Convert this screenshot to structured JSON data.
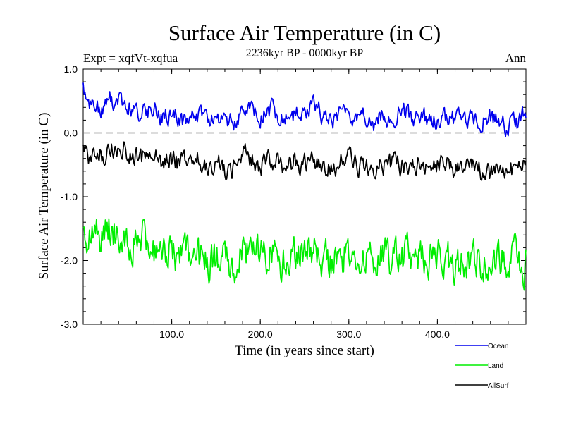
{
  "chart_data": {
    "type": "line",
    "title": "Surface Air Temperature (in C)",
    "subtitle": "2236kyr BP - 0000kyr BP",
    "experiment": "Expt = xqfVt-xqfua",
    "season": "Ann",
    "xlabel": "Time (in years since start)",
    "ylabel": "Surface Air Temperature (in C)",
    "xlim": [
      0,
      500
    ],
    "ylim": [
      -3.0,
      1.0
    ],
    "x_ticks": [
      "100.0",
      "200.0",
      "300.0",
      "400.0"
    ],
    "x_tick_values": [
      100,
      200,
      300,
      400
    ],
    "y_ticks": [
      "1.0",
      "0.0",
      "-1.0",
      "-2.0",
      "-3.0"
    ],
    "y_tick_values": [
      1,
      0,
      -1,
      -2,
      -3
    ],
    "reference_line": 0.0,
    "series": [
      {
        "name": "Ocean",
        "color": "#0000ee",
        "x": [
          0,
          10,
          20,
          30,
          40,
          50,
          60,
          70,
          80,
          90,
          100,
          110,
          120,
          130,
          140,
          150,
          160,
          170,
          180,
          190,
          200,
          210,
          220,
          230,
          240,
          250,
          260,
          270,
          280,
          290,
          300,
          310,
          320,
          330,
          340,
          350,
          360,
          370,
          380,
          390,
          400,
          410,
          420,
          430,
          440,
          450,
          460,
          470,
          480,
          490,
          500
        ],
        "values": [
          0.7,
          0.45,
          0.35,
          0.55,
          0.5,
          0.4,
          0.35,
          0.3,
          0.35,
          0.25,
          0.3,
          0.2,
          0.25,
          0.3,
          0.2,
          0.3,
          0.15,
          0.2,
          0.35,
          0.3,
          0.2,
          0.35,
          0.3,
          0.2,
          0.25,
          0.3,
          0.5,
          0.25,
          0.2,
          0.25,
          0.3,
          0.2,
          0.25,
          0.15,
          0.3,
          0.25,
          0.35,
          0.25,
          0.3,
          0.2,
          0.2,
          0.25,
          0.2,
          0.25,
          0.2,
          0.15,
          0.25,
          0.2,
          0.1,
          0.15,
          0.35
        ]
      },
      {
        "name": "Land",
        "color": "#00ee00",
        "x": [
          0,
          10,
          20,
          30,
          40,
          50,
          60,
          70,
          80,
          90,
          100,
          110,
          120,
          130,
          140,
          150,
          160,
          170,
          180,
          190,
          200,
          210,
          220,
          230,
          240,
          250,
          260,
          270,
          280,
          290,
          300,
          310,
          320,
          330,
          340,
          350,
          360,
          370,
          380,
          390,
          400,
          410,
          420,
          430,
          440,
          450,
          460,
          470,
          480,
          490,
          500
        ],
        "values": [
          -1.6,
          -1.55,
          -1.7,
          -1.5,
          -1.6,
          -1.7,
          -1.65,
          -1.6,
          -1.8,
          -1.9,
          -1.85,
          -1.95,
          -1.9,
          -2.0,
          -2.1,
          -2.0,
          -2.05,
          -2.15,
          -1.8,
          -1.9,
          -2.0,
          -1.9,
          -2.05,
          -1.95,
          -2.0,
          -1.9,
          -1.85,
          -2.0,
          -2.05,
          -1.95,
          -1.85,
          -1.9,
          -2.0,
          -1.95,
          -1.85,
          -2.0,
          -1.9,
          -2.0,
          -1.95,
          -1.9,
          -1.95,
          -2.0,
          -2.1,
          -2.0,
          -1.9,
          -2.05,
          -2.1,
          -2.05,
          -1.95,
          -2.0,
          -2.05
        ]
      },
      {
        "name": "AllSurf",
        "color": "#000000",
        "x": [
          0,
          10,
          20,
          30,
          40,
          50,
          60,
          70,
          80,
          90,
          100,
          110,
          120,
          130,
          140,
          150,
          160,
          170,
          180,
          190,
          200,
          210,
          220,
          230,
          240,
          250,
          260,
          270,
          280,
          290,
          300,
          310,
          320,
          330,
          340,
          350,
          360,
          370,
          380,
          390,
          400,
          410,
          420,
          430,
          440,
          450,
          460,
          470,
          480,
          490,
          500
        ],
        "values": [
          -0.2,
          -0.4,
          -0.35,
          -0.25,
          -0.2,
          -0.3,
          -0.35,
          -0.4,
          -0.35,
          -0.45,
          -0.4,
          -0.5,
          -0.45,
          -0.4,
          -0.5,
          -0.45,
          -0.55,
          -0.6,
          -0.3,
          -0.4,
          -0.5,
          -0.4,
          -0.45,
          -0.55,
          -0.45,
          -0.5,
          -0.4,
          -0.5,
          -0.55,
          -0.45,
          -0.4,
          -0.5,
          -0.45,
          -0.55,
          -0.5,
          -0.45,
          -0.5,
          -0.5,
          -0.45,
          -0.55,
          -0.5,
          -0.55,
          -0.6,
          -0.5,
          -0.55,
          -0.6,
          -0.65,
          -0.55,
          -0.6,
          -0.55,
          -0.5
        ]
      }
    ],
    "legend": {
      "placement": "bottom-right",
      "entries": [
        "Ocean",
        "Land",
        "AllSurf"
      ]
    }
  }
}
